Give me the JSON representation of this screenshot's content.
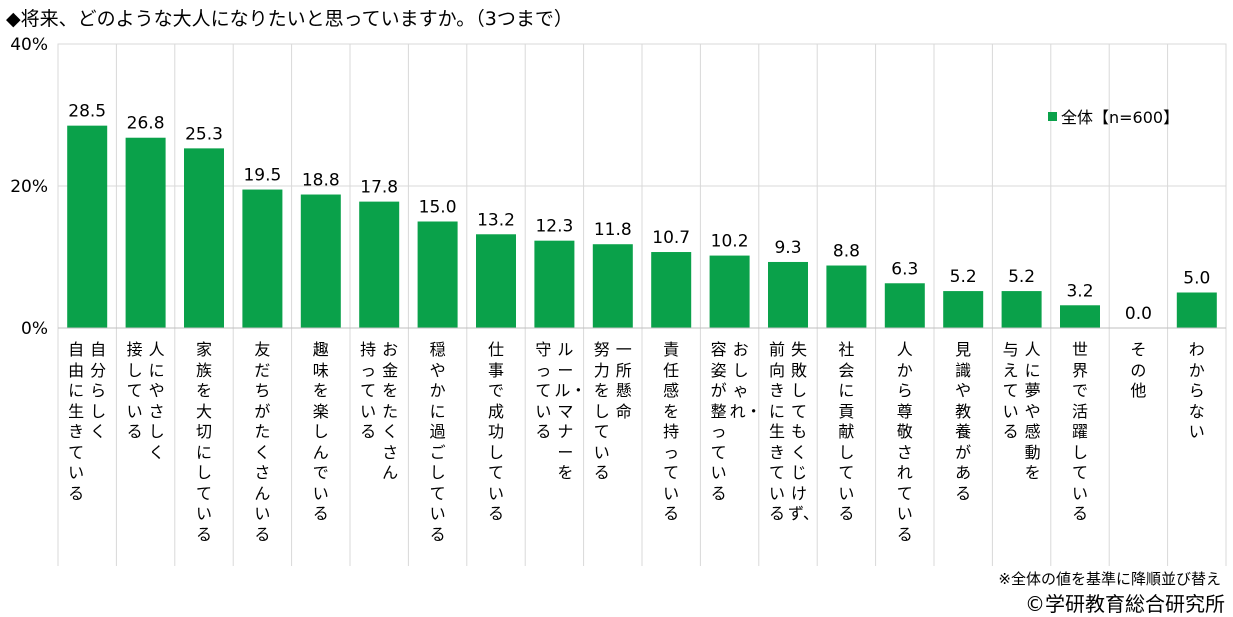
{
  "header": {
    "title": "◆将来、どのような大人になりたいと思っていますか。（3つまで）"
  },
  "footer": {
    "note": "※全体の値を基準に降順並び替え",
    "credit": "©学研教育総合研究所"
  },
  "chart_data": {
    "type": "bar",
    "title": "◆将来、どのような大人になりたいと思っていますか。（3つまで）",
    "xlabel": "",
    "ylabel": "",
    "ylim": [
      0,
      40
    ],
    "yticks": [
      "0%",
      "20%",
      "40%"
    ],
    "grid": true,
    "legend": "top-right",
    "color": "#0aa14a",
    "categories": [
      "自分らしく自由に生きている",
      "人にやさしく接している",
      "家族を大切にしている",
      "友だちがたくさんいる",
      "趣味を楽しんでいる",
      "お金をたくさん持っている",
      "穏やかに過ごしている",
      "仕事で成功している",
      "ルール・マナーを守っている",
      "一所懸命努力をしている",
      "責任感を持っている",
      "おしゃれ・容姿が整っている",
      "失敗してもくじけず、前向きに生きている",
      "社会に貢献している",
      "人から尊敬されている",
      "見識や教養がある",
      "人に夢や感動を与えている",
      "世界で活躍している",
      "その他",
      "わからない"
    ],
    "label_lines": [
      [
        "自分らしく",
        "自由に生きている"
      ],
      [
        "人にやさしく",
        "接している"
      ],
      [
        "家族を大切にしている"
      ],
      [
        "友だちがたくさんいる"
      ],
      [
        "趣味を楽しんでいる"
      ],
      [
        "お金をたくさん",
        "持っている"
      ],
      [
        "穏やかに過ごしている"
      ],
      [
        "仕事で成功している"
      ],
      [
        "ルール・マナーを",
        "守っている"
      ],
      [
        "一所懸命",
        "努力をしている"
      ],
      [
        "責任感を持っている"
      ],
      [
        "おしゃれ・",
        "容姿が整っている"
      ],
      [
        "失敗してもくじけず、",
        "前向きに生きている"
      ],
      [
        "社会に貢献している"
      ],
      [
        "人から尊敬されている"
      ],
      [
        "見識や教養がある"
      ],
      [
        "人に夢や感動を",
        "与えている"
      ],
      [
        "世界で活躍している"
      ],
      [
        "その他"
      ],
      [
        "わからない"
      ]
    ],
    "series": [
      {
        "name": "全体【n=600】",
        "values": [
          28.5,
          26.8,
          25.3,
          19.5,
          18.8,
          17.8,
          15.0,
          13.2,
          12.3,
          11.8,
          10.7,
          10.2,
          9.3,
          8.8,
          6.3,
          5.2,
          5.2,
          3.2,
          0.0,
          5.0
        ],
        "labels": [
          "28.5",
          "26.8",
          "25.3",
          "19.5",
          "18.8",
          "17.8",
          "15.0",
          "13.2",
          "12.3",
          "11.8",
          "10.7",
          "10.2",
          "9.3",
          "8.8",
          "6.3",
          "5.2",
          "5.2",
          "3.2",
          "0.0",
          "5.0"
        ]
      }
    ]
  }
}
